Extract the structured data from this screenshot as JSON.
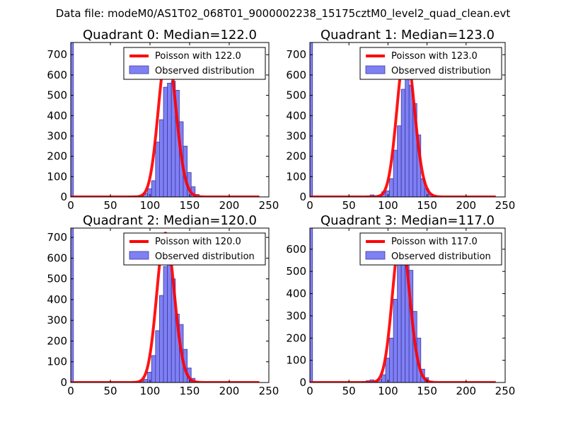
{
  "figure": {
    "suptitle": "Data file: modeM0/AS1T02_068T01_9000002238_15175cztM0_level2_quad_clean.evt"
  },
  "colors": {
    "poisson": "#ff0000",
    "hist_fill": "#8080f5",
    "hist_edge": "#3a3aa0",
    "axes": "#000000"
  },
  "chart_data": [
    {
      "type": "bar",
      "title": "Quadrant 0: Median=122.0",
      "xlim": [
        0,
        250
      ],
      "ylim": [
        0,
        760
      ],
      "xticks": [
        0,
        50,
        100,
        150,
        200,
        250
      ],
      "yticks": [
        0,
        100,
        200,
        300,
        400,
        500,
        600,
        700
      ],
      "legend": [
        "Poisson with 122.0",
        "Observed distribution"
      ],
      "legend_location": "top-right",
      "poisson_mean": 122.0,
      "poisson_scale": 720,
      "zero_bin": 760,
      "bin_width": 5,
      "bins": [
        {
          "x": 72,
          "y": 3
        },
        {
          "x": 77,
          "y": 5
        },
        {
          "x": 82,
          "y": 3
        },
        {
          "x": 87,
          "y": 8
        },
        {
          "x": 92,
          "y": 18
        },
        {
          "x": 97,
          "y": 40
        },
        {
          "x": 102,
          "y": 80
        },
        {
          "x": 107,
          "y": 270
        },
        {
          "x": 112,
          "y": 380
        },
        {
          "x": 117,
          "y": 540
        },
        {
          "x": 122,
          "y": 560
        },
        {
          "x": 127,
          "y": 570
        },
        {
          "x": 132,
          "y": 525
        },
        {
          "x": 137,
          "y": 370
        },
        {
          "x": 142,
          "y": 250
        },
        {
          "x": 147,
          "y": 120
        },
        {
          "x": 152,
          "y": 50
        },
        {
          "x": 157,
          "y": 12
        },
        {
          "x": 162,
          "y": 3
        }
      ]
    },
    {
      "type": "bar",
      "title": "Quadrant 1: Median=123.0",
      "xlim": [
        0,
        250
      ],
      "ylim": [
        0,
        760
      ],
      "xticks": [
        0,
        50,
        100,
        150,
        200,
        250
      ],
      "yticks": [
        0,
        100,
        200,
        300,
        400,
        500,
        600,
        700
      ],
      "legend": [
        "Poisson with 123.0",
        "Observed distribution"
      ],
      "legend_location": "top-right",
      "poisson_mean": 123.0,
      "poisson_scale": 725,
      "zero_bin": 760,
      "bin_width": 5,
      "bins": [
        {
          "x": 72,
          "y": 5
        },
        {
          "x": 77,
          "y": 10
        },
        {
          "x": 82,
          "y": 6
        },
        {
          "x": 87,
          "y": 8
        },
        {
          "x": 92,
          "y": 25
        },
        {
          "x": 97,
          "y": 30
        },
        {
          "x": 102,
          "y": 90
        },
        {
          "x": 107,
          "y": 230
        },
        {
          "x": 112,
          "y": 350
        },
        {
          "x": 117,
          "y": 530
        },
        {
          "x": 122,
          "y": 700
        },
        {
          "x": 127,
          "y": 550
        },
        {
          "x": 132,
          "y": 460
        },
        {
          "x": 137,
          "y": 305
        },
        {
          "x": 142,
          "y": 90
        },
        {
          "x": 147,
          "y": 40
        },
        {
          "x": 152,
          "y": 15
        },
        {
          "x": 157,
          "y": 5
        }
      ]
    },
    {
      "type": "bar",
      "title": "Quadrant 2: Median=120.0",
      "xlim": [
        0,
        250
      ],
      "ylim": [
        0,
        745
      ],
      "xticks": [
        0,
        50,
        100,
        150,
        200,
        250
      ],
      "yticks": [
        0,
        100,
        200,
        300,
        400,
        500,
        600,
        700
      ],
      "legend": [
        "Poisson with 120.0",
        "Observed distribution"
      ],
      "legend_location": "top-right",
      "poisson_mean": 120.0,
      "poisson_scale": 720,
      "zero_bin": 745,
      "bin_width": 5,
      "bins": [
        {
          "x": 77,
          "y": 4
        },
        {
          "x": 82,
          "y": 4
        },
        {
          "x": 87,
          "y": 8
        },
        {
          "x": 92,
          "y": 15
        },
        {
          "x": 97,
          "y": 50
        },
        {
          "x": 102,
          "y": 130
        },
        {
          "x": 107,
          "y": 250
        },
        {
          "x": 112,
          "y": 420
        },
        {
          "x": 117,
          "y": 560
        },
        {
          "x": 122,
          "y": 595
        },
        {
          "x": 127,
          "y": 500
        },
        {
          "x": 132,
          "y": 330
        },
        {
          "x": 137,
          "y": 280
        },
        {
          "x": 142,
          "y": 160
        },
        {
          "x": 147,
          "y": 70
        },
        {
          "x": 152,
          "y": 20
        },
        {
          "x": 157,
          "y": 5
        }
      ]
    },
    {
      "type": "bar",
      "title": "Quadrant 3: Median=117.0",
      "xlim": [
        0,
        250
      ],
      "ylim": [
        0,
        695
      ],
      "xticks": [
        0,
        50,
        100,
        150,
        200,
        250
      ],
      "yticks": [
        0,
        100,
        200,
        300,
        400,
        500,
        600
      ],
      "legend": [
        "Poisson with 117.0",
        "Observed distribution"
      ],
      "legend_location": "top-right",
      "poisson_mean": 117.0,
      "poisson_scale": 665,
      "zero_bin": 695,
      "bin_width": 5,
      "bins": [
        {
          "x": 67,
          "y": 5
        },
        {
          "x": 72,
          "y": 8
        },
        {
          "x": 77,
          "y": 12
        },
        {
          "x": 82,
          "y": 6
        },
        {
          "x": 87,
          "y": 15
        },
        {
          "x": 92,
          "y": 35
        },
        {
          "x": 97,
          "y": 110
        },
        {
          "x": 102,
          "y": 200
        },
        {
          "x": 107,
          "y": 375
        },
        {
          "x": 112,
          "y": 570
        },
        {
          "x": 117,
          "y": 600
        },
        {
          "x": 122,
          "y": 575
        },
        {
          "x": 127,
          "y": 505
        },
        {
          "x": 132,
          "y": 320
        },
        {
          "x": 137,
          "y": 200
        },
        {
          "x": 142,
          "y": 60
        },
        {
          "x": 147,
          "y": 22
        },
        {
          "x": 152,
          "y": 6
        }
      ]
    }
  ]
}
